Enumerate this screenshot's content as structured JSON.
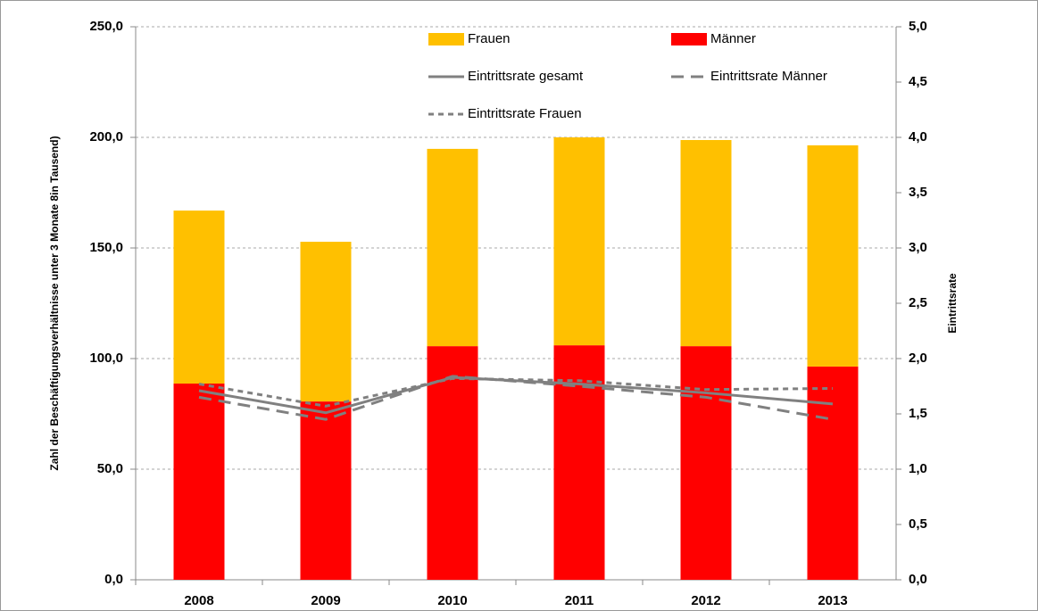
{
  "chart_data": {
    "type": "bar",
    "stacked": true,
    "grid": true,
    "categories": [
      "2008",
      "2009",
      "2010",
      "2011",
      "2012",
      "2013"
    ],
    "ylabel": "Zahl der Beschäftigungsverhältnisse unter 3 Monate 8in Tausend)",
    "y2label": "Eintrittsrate",
    "ylim": [
      0,
      250
    ],
    "yticks": [
      {
        "value": 0,
        "label": "0,0"
      },
      {
        "value": 50,
        "label": "50,0"
      },
      {
        "value": 100,
        "label": "100,0"
      },
      {
        "value": 150,
        "label": "150,0"
      },
      {
        "value": 200,
        "label": "200,0"
      },
      {
        "value": 250,
        "label": "250,0"
      }
    ],
    "y2lim": [
      0,
      5
    ],
    "y2ticks": [
      {
        "value": 0,
        "label": "0,0"
      },
      {
        "value": 0.5,
        "label": "0,5"
      },
      {
        "value": 1,
        "label": "1,0"
      },
      {
        "value": 1.5,
        "label": "1,5"
      },
      {
        "value": 2,
        "label": "2,0"
      },
      {
        "value": 2.5,
        "label": "2,5"
      },
      {
        "value": 3,
        "label": "3,0"
      },
      {
        "value": 3.5,
        "label": "3,5"
      },
      {
        "value": 4,
        "label": "4,0"
      },
      {
        "value": 4.5,
        "label": "4,5"
      },
      {
        "value": 5,
        "label": "5,0"
      }
    ],
    "series": [
      {
        "name": "Männer",
        "type": "bar",
        "color": "#ff0000",
        "values": [
          88.7,
          80.6,
          105.6,
          106.0,
          105.6,
          96.4
        ]
      },
      {
        "name": "Frauen",
        "type": "bar",
        "color": "#ffc000",
        "values": [
          78.2,
          72.2,
          89.2,
          94.0,
          93.2,
          100.0
        ]
      },
      {
        "name": "Eintrittsrate gesamt",
        "type": "line",
        "axis": "y2",
        "dash": "solid",
        "color": "#808080",
        "values": [
          1.71,
          1.51,
          1.83,
          1.77,
          1.69,
          1.59
        ]
      },
      {
        "name": "Eintrittsrate Männer",
        "type": "line",
        "axis": "y2",
        "dash": "long",
        "color": "#808080",
        "values": [
          1.65,
          1.45,
          1.84,
          1.75,
          1.65,
          1.45
        ]
      },
      {
        "name": "Eintrittsrate Frauen",
        "type": "line",
        "axis": "y2",
        "dash": "short",
        "color": "#808080",
        "values": [
          1.77,
          1.57,
          1.82,
          1.8,
          1.72,
          1.73
        ]
      }
    ]
  }
}
